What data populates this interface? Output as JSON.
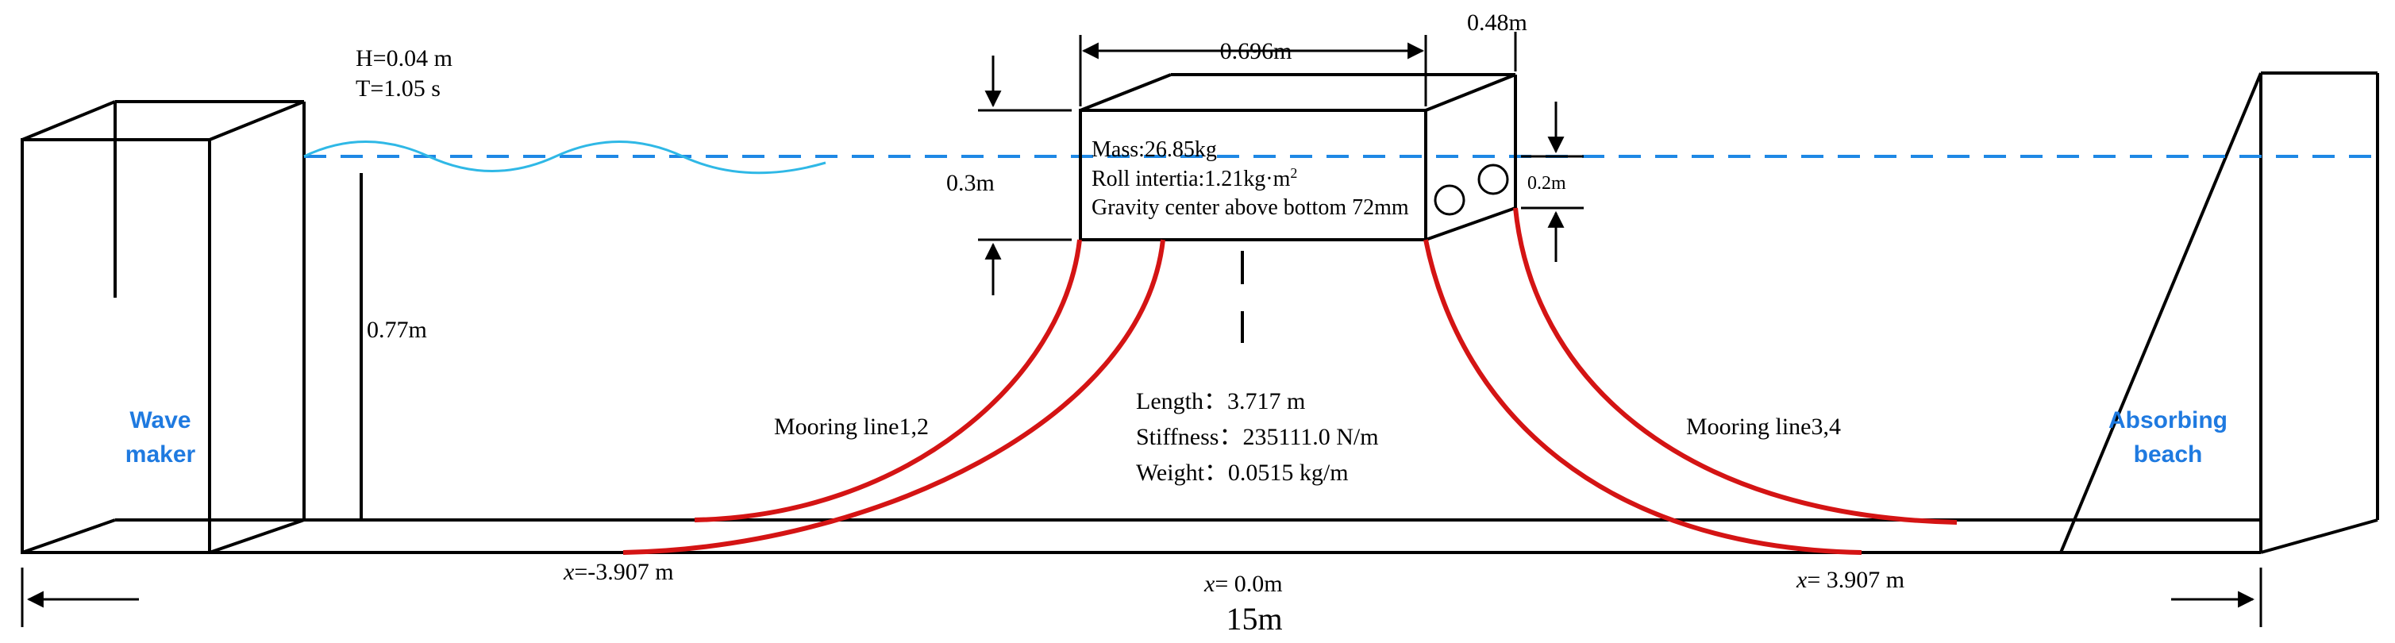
{
  "wave": {
    "height_label": "H=0.04 m",
    "period_label": "T=1.05 s",
    "color_water": "#1e88e5",
    "color_wave": "#2fb8e6"
  },
  "depth_label": "0.77m",
  "wavemaker": {
    "line1": "Wave",
    "line2": "maker"
  },
  "beach": {
    "line1": "Absorbing",
    "line2": "beach"
  },
  "body": {
    "width_label": "0.696m",
    "depth_label": "0.48m",
    "height_label": "0.3m",
    "draft_label": "0.2m",
    "mass": "Mass:26.85kg",
    "roll_prefix": "Roll intertia:1.21kg·m",
    "roll_exp": "2",
    "gravity": "Gravity center above bottom 72mm"
  },
  "mooring": {
    "left_label": "Mooring line1,2",
    "right_label": "Mooring line3,4",
    "color": "#d41414",
    "length": "Length：3.717 m",
    "stiffness": "Stiffness：235111.0 N/m",
    "weight": "Weight：0.0515 kg/m"
  },
  "positions": {
    "left_italic": "x",
    "left_value": "=-3.907 m",
    "center_italic": "x",
    "center_value": "= 0.0m",
    "right_italic": "x",
    "right_value": "= 3.907 m"
  },
  "tank_length": "15m"
}
